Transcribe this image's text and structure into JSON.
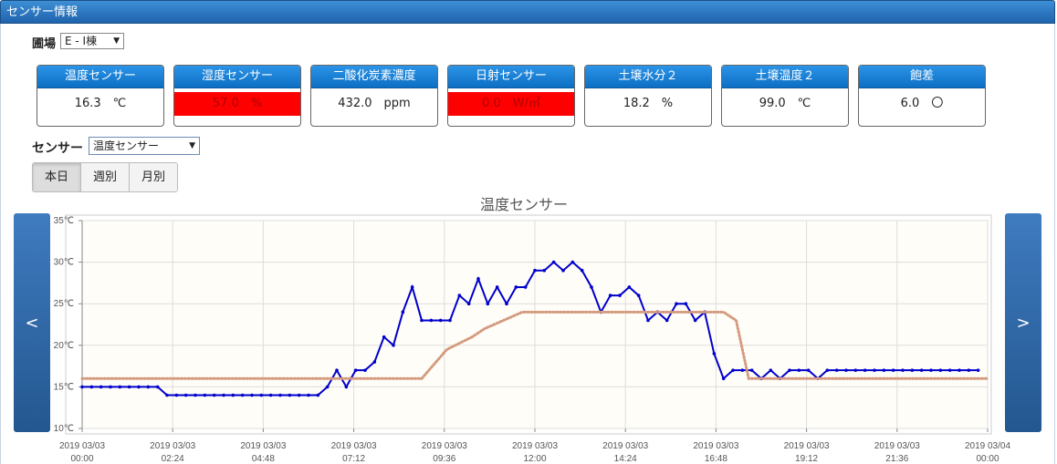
{
  "panel_title": "センサー情報",
  "farm": {
    "label": "圃場",
    "selected": "E - I棟"
  },
  "cards": [
    {
      "name": "温度センサー",
      "value": "16.3　℃",
      "alert": false
    },
    {
      "name": "湿度センサー",
      "value": "57.0　%",
      "alert": true
    },
    {
      "name": "二酸化炭素濃度",
      "value": "432.0　ppm",
      "alert": false
    },
    {
      "name": "日射センサー",
      "value": "0.0　W/㎡",
      "alert": true
    },
    {
      "name": "土壌水分２",
      "value": "18.2　%",
      "alert": false
    },
    {
      "name": "土壌温度２",
      "value": "99.0　℃",
      "alert": false
    },
    {
      "name": "飽差",
      "value": "6.0　〇",
      "alert": false
    }
  ],
  "sensor": {
    "label": "センサー",
    "selected": "温度センサー"
  },
  "periods": [
    "本日",
    "週別",
    "月別"
  ],
  "active_period": "本日",
  "nav": {
    "prev": "<",
    "next": ">"
  },
  "colors": {
    "header": "#1f63ad",
    "alert": "#ff0000",
    "series_line": "#0000cc",
    "reference_line": "#d49a7e",
    "plot_bg": "#fffdf7"
  },
  "chart_data": {
    "type": "line",
    "title": "温度センサー",
    "ylim": [
      10,
      35
    ],
    "yticks": [
      "10℃",
      "15℃",
      "20℃",
      "25℃",
      "30℃",
      "35℃"
    ],
    "xlim": [
      0,
      1440
    ],
    "xticks": [
      [
        "2019 03/03",
        "00:00"
      ],
      [
        "2019 03/03",
        "02:24"
      ],
      [
        "2019 03/03",
        "04:48"
      ],
      [
        "2019 03/03",
        "07:12"
      ],
      [
        "2019 03/03",
        "09:36"
      ],
      [
        "2019 03/03",
        "12:00"
      ],
      [
        "2019 03/03",
        "14:24"
      ],
      [
        "2019 03/03",
        "16:48"
      ],
      [
        "2019 03/03",
        "19:12"
      ],
      [
        "2019 03/03",
        "21:36"
      ],
      [
        "2019 03/04",
        "00:00"
      ]
    ],
    "grid": true,
    "series": [
      {
        "style": "solid",
        "color": "#0000cc",
        "x": [
          0,
          15,
          30,
          45,
          60,
          75,
          90,
          105,
          120,
          135,
          150,
          165,
          180,
          195,
          210,
          225,
          240,
          255,
          270,
          285,
          300,
          315,
          330,
          345,
          360,
          375,
          390,
          405,
          420,
          435,
          450,
          465,
          480,
          495,
          510,
          525,
          540,
          555,
          570,
          585,
          600,
          615,
          630,
          645,
          660,
          675,
          690,
          705,
          720,
          735,
          750,
          765,
          780,
          795,
          810,
          825,
          840,
          855,
          870,
          885,
          900,
          915,
          930,
          945,
          960,
          975,
          990,
          1005,
          1020,
          1035,
          1050,
          1065,
          1080,
          1095,
          1110,
          1125,
          1140,
          1155,
          1170,
          1185,
          1200,
          1215,
          1230,
          1245,
          1260,
          1275,
          1290,
          1305,
          1320,
          1335,
          1350,
          1365,
          1380,
          1395,
          1410,
          1425
        ],
        "y": [
          15,
          15,
          15,
          15,
          15,
          15,
          15,
          15,
          15,
          14,
          14,
          14,
          14,
          14,
          14,
          14,
          14,
          14,
          14,
          14,
          14,
          14,
          14,
          14,
          14,
          14,
          15,
          17,
          15,
          17,
          17,
          18,
          21,
          20,
          24,
          27,
          23,
          23,
          23,
          23,
          26,
          25,
          28,
          25,
          27,
          25,
          27,
          27,
          29,
          29,
          30,
          29,
          30,
          29,
          27,
          24,
          26,
          26,
          27,
          26,
          23,
          24,
          23,
          25,
          25,
          23,
          24,
          19,
          16,
          17,
          17,
          17,
          16,
          17,
          16,
          17,
          17,
          17,
          16,
          17,
          17,
          17,
          17,
          17,
          17,
          17,
          17,
          17,
          17,
          17,
          17,
          17,
          17,
          17,
          17,
          17
        ]
      },
      {
        "style": "dotted",
        "color": "#d49a7e",
        "x": [
          0,
          480,
          500,
          540,
          580,
          620,
          640,
          700,
          760,
          920,
          1020,
          1040,
          1060,
          1440
        ],
        "y": [
          16,
          16,
          16,
          16,
          19.5,
          21,
          22,
          24,
          24,
          24,
          24,
          23,
          16,
          16
        ]
      }
    ]
  }
}
